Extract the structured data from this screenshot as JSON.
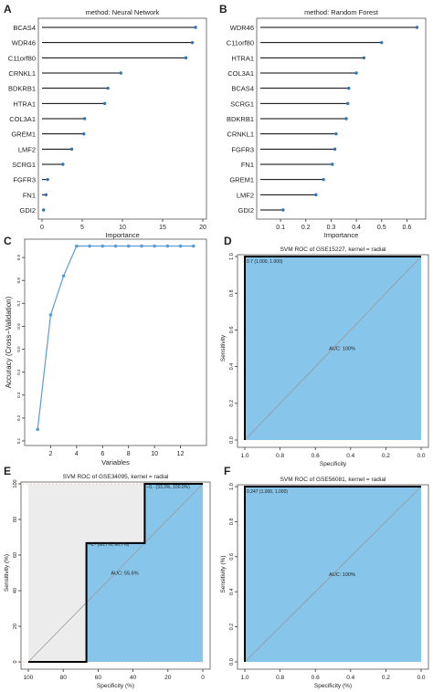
{
  "chart_data": [
    {
      "panel": "A",
      "type": "lollipop",
      "title": "method: Neural Network",
      "xlabel": "Importance",
      "xlim": [
        0,
        20
      ],
      "xticks": [
        0,
        5,
        10,
        15,
        20
      ],
      "categories": [
        "BCAS4",
        "WDR46",
        "C11orf80",
        "CRNKL1",
        "BDKRB1",
        "HTRA1",
        "COL3A1",
        "GREM1",
        "LMF2",
        "SCRG1",
        "FGFR3",
        "FN1",
        "GDI2"
      ],
      "values": [
        19.1,
        18.7,
        17.9,
        9.8,
        8.2,
        7.8,
        5.3,
        5.2,
        3.7,
        2.6,
        0.7,
        0.5,
        0.2
      ]
    },
    {
      "panel": "B",
      "type": "lollipop",
      "title": "method: Random Forest",
      "xlabel": "Importance",
      "xlim": [
        0.02,
        0.66
      ],
      "xticks": [
        0.1,
        0.2,
        0.3,
        0.4,
        0.5,
        0.6
      ],
      "categories": [
        "WDR46",
        "C11orf80",
        "HTRA1",
        "COL3A1",
        "BCAS4",
        "SCRG1",
        "BDKRB1",
        "CRNKL1",
        "FGFR3",
        "FN1",
        "GREM1",
        "LMF2",
        "GDI2"
      ],
      "values": [
        0.64,
        0.5,
        0.43,
        0.4,
        0.37,
        0.366,
        0.36,
        0.32,
        0.315,
        0.305,
        0.27,
        0.24,
        0.11
      ]
    },
    {
      "panel": "C",
      "type": "line",
      "title": "",
      "xlabel": "Variables",
      "ylabel": "Accuracy (Cross−Validation)",
      "xlim": [
        0,
        14
      ],
      "ylim": [
        0.08,
        0.98
      ],
      "xticks": [
        2,
        4,
        6,
        8,
        10,
        12
      ],
      "yticks": [
        0.1,
        0.2,
        0.3,
        0.4,
        0.5,
        0.6,
        0.7,
        0.8,
        0.9
      ],
      "ytick_labels": [
        "0.1",
        "0.2",
        "0.3",
        "0.4",
        "0.5",
        "0.6",
        "0.7",
        "0.8",
        "0.9"
      ],
      "x": [
        1,
        2,
        3,
        4,
        5,
        6,
        7,
        8,
        9,
        10,
        11,
        12,
        13
      ],
      "y": [
        0.15,
        0.65,
        0.82,
        0.95,
        0.95,
        0.95,
        0.95,
        0.95,
        0.95,
        0.95,
        0.95,
        0.95,
        0.95
      ]
    },
    {
      "panel": "D",
      "type": "roc",
      "title": "SVM ROC of GSE15227, kernel = radial",
      "xlabel": "Specificity",
      "ylabel": "Sensitivity",
      "auc_label": "AUC: 100%",
      "point_label": "0.7 (1.000, 1.000)",
      "xlim": [
        1,
        0
      ],
      "ylim": [
        0,
        1
      ],
      "xticks": [
        1,
        0.8,
        0.6,
        0.4,
        0.2,
        0
      ],
      "xtick_labels": [
        "1.0",
        "0.8",
        "0.6",
        "0.4",
        "0.2",
        "0.0"
      ],
      "yticks": [
        0,
        0.2,
        0.4,
        0.6,
        0.8,
        1
      ],
      "ytick_labels": [
        "0.0",
        "0.2",
        "0.4",
        "0.6",
        "0.8",
        "1.0"
      ],
      "curve": [
        [
          1,
          0
        ],
        [
          1,
          1
        ],
        [
          0,
          1
        ]
      ]
    },
    {
      "panel": "E",
      "type": "roc",
      "title": "SVM ROC of GSE34095, kernel = radial",
      "xlabel": "Specificity (%)",
      "ylabel": "Sensitivity (%)",
      "auc_label": "AUC: 55.6%",
      "point_labels": [
        "−0.· (66.7%, 66.7%)",
        "−0.· (33.3%, 100.0%)"
      ],
      "xlim": [
        100,
        0
      ],
      "ylim": [
        0,
        100
      ],
      "xticks": [
        100,
        80,
        60,
        40,
        20,
        0
      ],
      "xtick_labels": [
        "100",
        "80",
        "60",
        "40",
        "20",
        "0"
      ],
      "yticks": [
        0,
        20,
        40,
        60,
        80,
        100
      ],
      "ytick_labels": [
        "0",
        "20",
        "40",
        "60",
        "80",
        "100"
      ],
      "curve": [
        [
          100,
          0
        ],
        [
          66.7,
          0
        ],
        [
          66.7,
          66.7
        ],
        [
          33.3,
          66.7
        ],
        [
          33.3,
          100
        ],
        [
          0,
          100
        ]
      ]
    },
    {
      "panel": "F",
      "type": "roc",
      "title": "SVM ROC of GSE56081, kernel = radial",
      "xlabel": "Specificity (%)",
      "ylabel": "Sensitivity (%)",
      "auc_label": "AUC: 100%",
      "point_label": "0.247 (1.000, 1.000)",
      "xlim": [
        1,
        0
      ],
      "ylim": [
        0,
        1
      ],
      "xticks": [
        1,
        0.8,
        0.6,
        0.4,
        0.2,
        0
      ],
      "xtick_labels": [
        "1.0",
        "0.8",
        "0.6",
        "0.4",
        "0.2",
        "0.0"
      ],
      "yticks": [
        0,
        0.2,
        0.4,
        0.6,
        0.8,
        1
      ],
      "ytick_labels": [
        "0.0",
        "0.2",
        "0.4",
        "0.6",
        "0.8",
        "1.0"
      ],
      "curve": [
        [
          1,
          0
        ],
        [
          1,
          1
        ],
        [
          0,
          1
        ]
      ]
    }
  ],
  "colors": {
    "lollipop": "#2e75b6",
    "line": "#5b9bd5",
    "roc_fill": "#87c6ea",
    "roc_grey": "#ececec",
    "diagonal": "#999999",
    "threshold_line": "#f2a0a0"
  }
}
